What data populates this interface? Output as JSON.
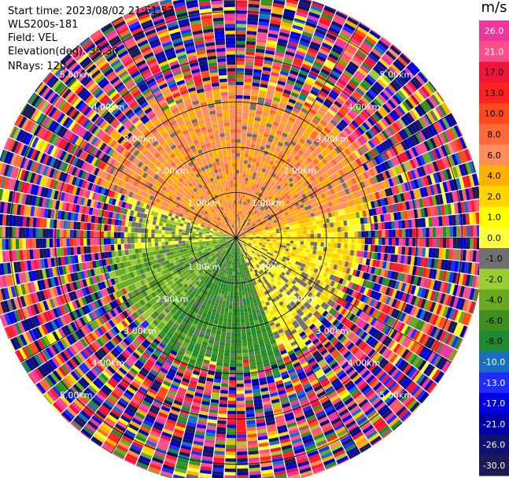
{
  "header": {
    "start_time": "Start time: 2023/08/02 21:51:57",
    "instrument": "WLS200s-181",
    "field": "Field: VEL",
    "elevation": "Elevation(deg): 35.30",
    "nrays": "NRays: 120"
  },
  "colorbar": {
    "unit": "m/s",
    "ticks": [
      "26.0",
      "21.0",
      "17.0",
      "13.0",
      "10.0",
      "8.0",
      "6.0",
      "4.0",
      "2.0",
      "1.0",
      "0.0",
      "-1.0",
      "-2.0",
      "-4.0",
      "-6.0",
      "-8.0",
      "-10.0",
      "-13.0",
      "-17.0",
      "-21.0",
      "-26.0",
      "-30.0"
    ],
    "bands": [
      {
        "from": 26,
        "to": 30,
        "color": "#f0359c"
      },
      {
        "from": 21,
        "to": 26,
        "color": "#ff4f8a"
      },
      {
        "from": 17,
        "to": 21,
        "color": "#f0133a"
      },
      {
        "from": 13,
        "to": 17,
        "color": "#ff2020"
      },
      {
        "from": 10,
        "to": 13,
        "color": "#ff4a1a"
      },
      {
        "from": 8,
        "to": 10,
        "color": "#ff6a3a"
      },
      {
        "from": 6,
        "to": 8,
        "color": "#ff8f5a"
      },
      {
        "from": 4,
        "to": 6,
        "color": "#ffb000"
      },
      {
        "from": 2,
        "to": 4,
        "color": "#ffd400"
      },
      {
        "from": 1,
        "to": 2,
        "color": "#ffff00"
      },
      {
        "from": 0,
        "to": 1,
        "color": "#ffff40"
      },
      {
        "from": -1,
        "to": 0,
        "color": "#707070"
      },
      {
        "from": -2,
        "to": -1,
        "color": "#9acd32"
      },
      {
        "from": -4,
        "to": -2,
        "color": "#6aaa22"
      },
      {
        "from": -6,
        "to": -4,
        "color": "#3e8e20"
      },
      {
        "from": -8,
        "to": -6,
        "color": "#208a30"
      },
      {
        "from": -10,
        "to": -8,
        "color": "#1a70c0"
      },
      {
        "from": -13,
        "to": -10,
        "color": "#1e2cff"
      },
      {
        "from": -17,
        "to": -13,
        "color": "#0000e0"
      },
      {
        "from": -21,
        "to": -17,
        "color": "#0000a8"
      },
      {
        "from": -26,
        "to": -21,
        "color": "#101070"
      },
      {
        "from": -30,
        "to": -26,
        "color": "#1a1a55"
      }
    ]
  },
  "chart_data": {
    "type": "heatmap",
    "projection": "polar-ppi",
    "field": "VEL",
    "unit": "m/s",
    "nrays": 120,
    "value_range": [
      -30,
      30
    ],
    "range_rings_km": [
      "1.00km",
      "2.00km",
      "3.00km",
      "4.00km",
      "5.00km"
    ],
    "ring_km_values": [
      1,
      2,
      3,
      4,
      5
    ],
    "max_range_km": 5.5,
    "azimuth_lines_deg": [
      0,
      30,
      60,
      90,
      120,
      150,
      180,
      210,
      240,
      270,
      300,
      330
    ],
    "sectors": [
      {
        "az_from": 290,
        "az_to": 75,
        "range_to_km": 3.3,
        "dominant_value": 6.5
      },
      {
        "az_from": 75,
        "az_to": 110,
        "range_to_km": 2.8,
        "dominant_value": 2.5
      },
      {
        "az_from": 110,
        "az_to": 160,
        "range_to_km": 2.6,
        "dominant_value": 1.0
      },
      {
        "az_from": 160,
        "az_to": 220,
        "range_to_km": 2.9,
        "dominant_value": -5.5
      },
      {
        "az_from": 220,
        "az_to": 265,
        "range_to_km": 2.8,
        "dominant_value": -3.0
      },
      {
        "az_from": 265,
        "az_to": 290,
        "range_to_km": 2.5,
        "dominant_value": -0.5
      }
    ],
    "noise_from_km": 3.3
  }
}
